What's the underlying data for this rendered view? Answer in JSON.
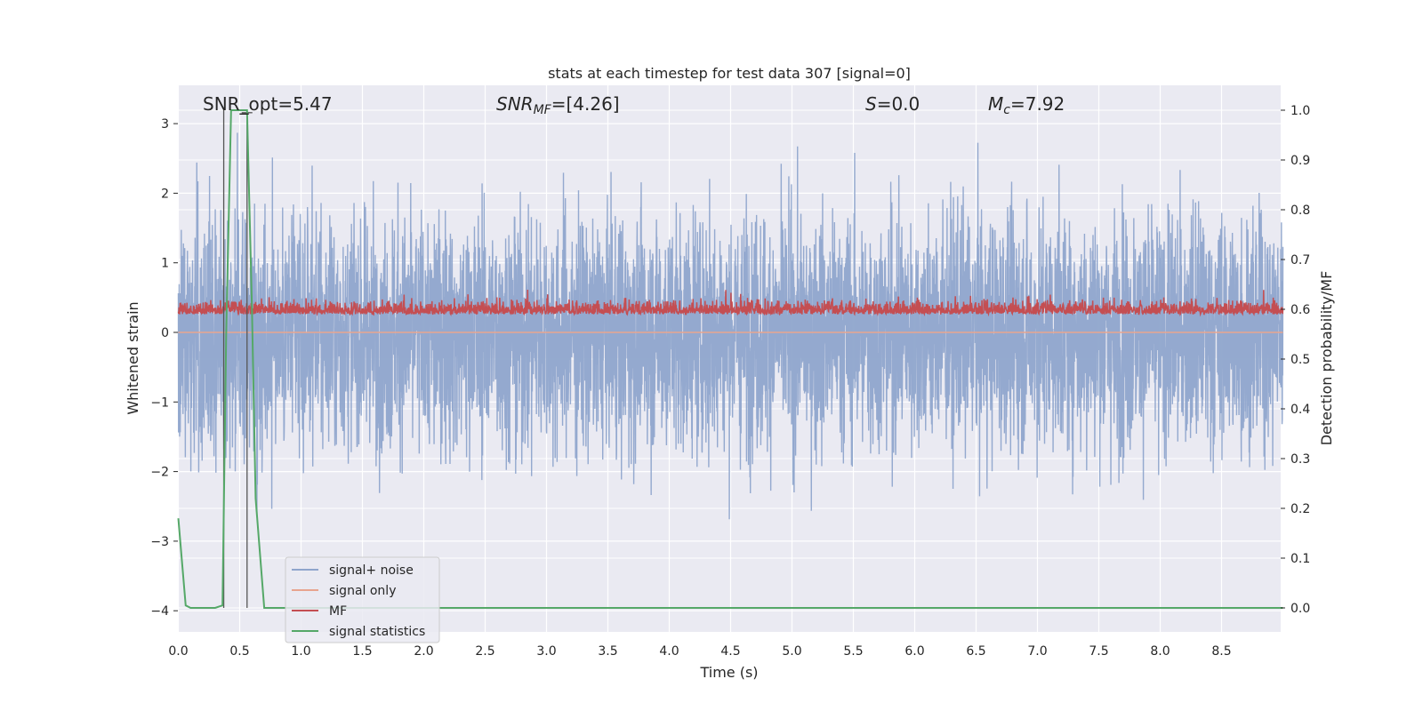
{
  "chart_data": {
    "type": "line",
    "title": "stats at each timestep for test data 307 [signal=0]",
    "xlabel": "Time (s)",
    "ylabel": "Whitened strain",
    "ylabel_right": "Detection probability/MF",
    "xlim": [
      0.0,
      9.0
    ],
    "ylim": [
      -4.35,
      3.5
    ],
    "ylim_right": [
      -0.05,
      1.05
    ],
    "x_ticks": [
      "0.0",
      "0.5",
      "1.0",
      "1.5",
      "2.0",
      "2.5",
      "3.0",
      "3.5",
      "4.0",
      "4.5",
      "5.0",
      "5.5",
      "6.0",
      "6.5",
      "7.0",
      "7.5",
      "8.0",
      "8.5"
    ],
    "y_ticks": [
      "3",
      "2",
      "1",
      "0",
      "−1",
      "−2",
      "−3",
      "−4"
    ],
    "y_ticks_right": [
      "1.0",
      "0.9",
      "0.8",
      "0.7",
      "0.6",
      "0.5",
      "0.4",
      "0.3",
      "0.2",
      "0.1",
      "0.0"
    ],
    "grid": true,
    "legend_position": "lower-left",
    "annotations": {
      "snr_opt": "SNR_opt=5.47",
      "snr_mf_label": "SNR",
      "snr_mf_sub": "MF",
      "snr_mf_value": "=[4.26]",
      "s_label": "S",
      "s_value": "=0.0",
      "mc_label": "M",
      "mc_sub": "c",
      "mc_value": "=7.92"
    },
    "series": [
      {
        "name": "signal+ noise",
        "color": "#8fa5cc",
        "style": "gaussian noise, std ≈ 0.85 whitened strain, extremes ≈ ±3.2",
        "x_range": [
          0.0,
          9.0
        ]
      },
      {
        "name": "signal only",
        "color": "#e8a48f",
        "values": "0 across the whole interval"
      },
      {
        "name": "MF",
        "color": "#c44e52",
        "baseline": 0.3,
        "range": [
          0.0,
          1.0
        ]
      },
      {
        "name": "signal statistics",
        "color": "#55a868",
        "x": [
          0.0,
          0.06,
          0.1,
          0.2,
          0.3,
          0.36,
          0.39,
          0.43,
          0.47,
          0.52,
          0.56,
          0.6,
          0.63,
          0.7,
          0.8,
          1.0,
          2.0,
          3.0,
          4.0,
          5.0,
          6.0,
          7.0,
          8.0,
          9.0
        ],
        "values": [
          0.18,
          0.005,
          0.0,
          0.0,
          0.0,
          0.005,
          0.55,
          1.0,
          1.0,
          1.0,
          1.0,
          0.6,
          0.22,
          0.0,
          0.0,
          0.0,
          0.0,
          0.0,
          0.0,
          0.0,
          0.0,
          0.0,
          0.0,
          0.0
        ]
      }
    ],
    "vertical_lines": {
      "color": "#555555",
      "x": [
        0.37,
        0.56
      ],
      "range_right": [
        0.0,
        1.0
      ]
    }
  }
}
